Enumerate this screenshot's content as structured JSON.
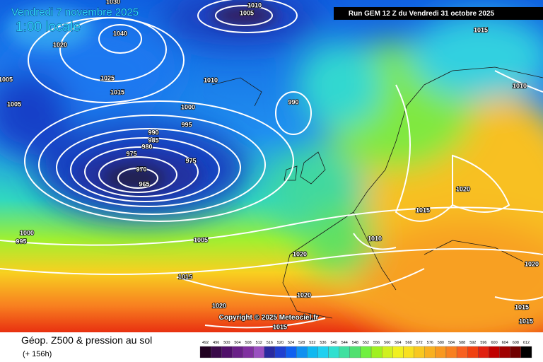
{
  "header": {
    "title": "Vendredi 7 novembre 2025",
    "time": "1:00 locale",
    "run": "Run GEM 12 Z du Vendredi 31 octobre 2025"
  },
  "isobar_labels": [
    "1030",
    "1010",
    "1005",
    "1040",
    "1020",
    "1015",
    "1005",
    "1025",
    "1015",
    "1010",
    "1010",
    "1005",
    "1000",
    "990",
    "995",
    "990",
    "985",
    "980",
    "975",
    "975",
    "970",
    "965",
    "1020",
    "1015",
    "1000",
    "995",
    "1005",
    "1010",
    "1020",
    "1020",
    "1015",
    "1020",
    "1020",
    "1015",
    "1015",
    "1015"
  ],
  "copyright": "Copyright © 2025 Meteociel.fr",
  "legend": {
    "title": "Géop. Z500 & pression au sol",
    "lead": "(+ 156h)",
    "scale": [
      {
        "value": 492,
        "color": "#200020"
      },
      {
        "value": 496,
        "color": "#3a0a4a"
      },
      {
        "value": 500,
        "color": "#50106a"
      },
      {
        "value": 504,
        "color": "#6a2088"
      },
      {
        "value": 508,
        "color": "#8030a0"
      },
      {
        "value": 512,
        "color": "#9a50c0"
      },
      {
        "value": 516,
        "color": "#2a2aa0"
      },
      {
        "value": 520,
        "color": "#2040d0"
      },
      {
        "value": 524,
        "color": "#1060f0"
      },
      {
        "value": 528,
        "color": "#1090f0"
      },
      {
        "value": 532,
        "color": "#10b8f0"
      },
      {
        "value": 536,
        "color": "#20d0f0"
      },
      {
        "value": 540,
        "color": "#30e0d0"
      },
      {
        "value": 544,
        "color": "#40e0a0"
      },
      {
        "value": 548,
        "color": "#50e070"
      },
      {
        "value": 552,
        "color": "#70f040"
      },
      {
        "value": 556,
        "color": "#a0f020"
      },
      {
        "value": 560,
        "color": "#d0f020"
      },
      {
        "value": 564,
        "color": "#f0f020"
      },
      {
        "value": 568,
        "color": "#f8e020"
      },
      {
        "value": 572,
        "color": "#f8c820"
      },
      {
        "value": 576,
        "color": "#f8b020"
      },
      {
        "value": 580,
        "color": "#f89820"
      },
      {
        "value": 584,
        "color": "#f88020"
      },
      {
        "value": 588,
        "color": "#f86020"
      },
      {
        "value": 592,
        "color": "#f04010"
      },
      {
        "value": 596,
        "color": "#e02010"
      },
      {
        "value": 600,
        "color": "#c00000"
      },
      {
        "value": 604,
        "color": "#a00000"
      },
      {
        "value": 608,
        "color": "#700000"
      },
      {
        "value": 612,
        "color": "#000000"
      }
    ]
  }
}
